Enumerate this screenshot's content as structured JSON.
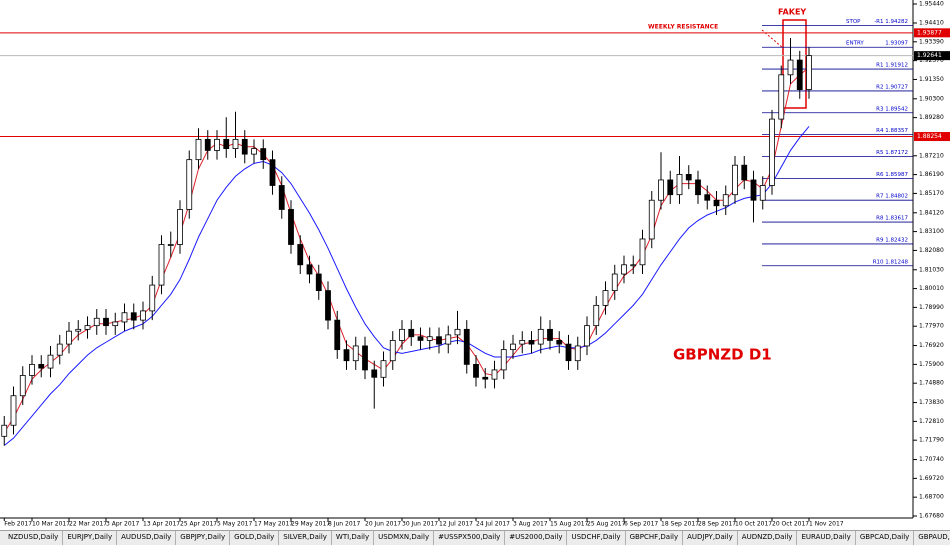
{
  "chart_data": {
    "type": "candlestick",
    "symbol_label": "GBPNZD D1",
    "annotations": {
      "resistance": "WEEKLY RESISTANCE",
      "pattern": "FAKEY"
    },
    "up_color": "#ffffff",
    "down_color": "#000000",
    "ylim": [
      1.67571,
      1.95657
    ],
    "yticks": [
      {
        "value": 1.9544,
        "label": "1.95440"
      },
      {
        "value": 1.9441,
        "label": "1.94410"
      },
      {
        "value": 1.9339,
        "label": "1.93390"
      },
      {
        "value": 1.9237,
        "label": "1.92370"
      },
      {
        "value": 1.9135,
        "label": "1.91350"
      },
      {
        "value": 1.903,
        "label": "1.90300"
      },
      {
        "value": 1.8928,
        "label": "1.89280"
      },
      {
        "value": 1.8721,
        "label": "1.87210"
      },
      {
        "value": 1.8619,
        "label": "1.86190"
      },
      {
        "value": 1.8517,
        "label": "1.85170"
      },
      {
        "value": 1.8412,
        "label": "1.84120"
      },
      {
        "value": 1.831,
        "label": "1.83100"
      },
      {
        "value": 1.8208,
        "label": "1.82080"
      },
      {
        "value": 1.8103,
        "label": "1.81030"
      },
      {
        "value": 1.8001,
        "label": "1.80010"
      },
      {
        "value": 1.7899,
        "label": "1.78990"
      },
      {
        "value": 1.7797,
        "label": "1.77970"
      },
      {
        "value": 1.7692,
        "label": "1.76920"
      },
      {
        "value": 1.759,
        "label": "1.75900"
      },
      {
        "value": 1.7488,
        "label": "1.74880"
      },
      {
        "value": 1.7383,
        "label": "1.73830"
      },
      {
        "value": 1.7281,
        "label": "1.72810"
      },
      {
        "value": 1.7179,
        "label": "1.71790"
      },
      {
        "value": 1.7074,
        "label": "1.70740"
      },
      {
        "value": 1.6972,
        "label": "1.69720"
      },
      {
        "value": 1.687,
        "label": "1.68700"
      },
      {
        "value": 1.6768,
        "label": "1.67680"
      }
    ],
    "categories": [
      "Feb 2017",
      null,
      null,
      "10 Mar 2017",
      null,
      null,
      null,
      "22 Mar 2017",
      null,
      null,
      null,
      "3 Apr 2017",
      null,
      null,
      null,
      "13 Apr 2017",
      null,
      null,
      null,
      "25 Apr 2017",
      null,
      null,
      null,
      "5 May 2017",
      null,
      null,
      null,
      "17 May 2017",
      null,
      null,
      null,
      "29 May 2017",
      null,
      null,
      null,
      "8 Jun 2017",
      null,
      null,
      null,
      "20 Jun 2017",
      null,
      null,
      null,
      "30 Jun 2017",
      null,
      null,
      null,
      "12 Jul 2017",
      null,
      null,
      null,
      "24 Jul 2017",
      null,
      null,
      null,
      "3 Aug 2017",
      null,
      null,
      null,
      "15 Aug 2017",
      null,
      null,
      null,
      "25 Aug 2017",
      null,
      null,
      null,
      "6 Sep 2017",
      null,
      null,
      null,
      "18 Sep 2017",
      null,
      null,
      null,
      "28 Sep 2017",
      null,
      null,
      null,
      "10 Oct 2017",
      null,
      null,
      null,
      "20 Oct 2017",
      null,
      null,
      null,
      "1 Nov 2017"
    ],
    "ohlc": [
      [
        1.72,
        1.731,
        1.715,
        1.726
      ],
      [
        1.726,
        1.747,
        1.721,
        1.742
      ],
      [
        1.742,
        1.758,
        1.737,
        1.753
      ],
      [
        1.753,
        1.764,
        1.748,
        1.759
      ],
      [
        1.759,
        1.764,
        1.752,
        1.757
      ],
      [
        1.757,
        1.769,
        1.752,
        1.764
      ],
      [
        1.764,
        1.775,
        1.759,
        1.77
      ],
      [
        1.77,
        1.782,
        1.765,
        1.777
      ],
      [
        1.777,
        1.783,
        1.772,
        1.778
      ],
      [
        1.778,
        1.785,
        1.773,
        1.78
      ],
      [
        1.78,
        1.789,
        1.775,
        1.784
      ],
      [
        1.784,
        1.789,
        1.775,
        1.78
      ],
      [
        1.78,
        1.787,
        1.775,
        1.782
      ],
      [
        1.782,
        1.792,
        1.777,
        1.787
      ],
      [
        1.787,
        1.792,
        1.778,
        1.783
      ],
      [
        1.783,
        1.793,
        1.778,
        1.788
      ],
      [
        1.788,
        1.807,
        1.783,
        1.802
      ],
      [
        1.802,
        1.829,
        1.797,
        1.824
      ],
      [
        1.824,
        1.831,
        1.817,
        1.824
      ],
      [
        1.824,
        1.848,
        1.819,
        1.843
      ],
      [
        1.843,
        1.875,
        1.838,
        1.87
      ],
      [
        1.87,
        1.887,
        1.865,
        1.881
      ],
      [
        1.881,
        1.886,
        1.87,
        1.875
      ],
      [
        1.875,
        1.886,
        1.87,
        1.881
      ],
      [
        1.881,
        1.893,
        1.871,
        1.876
      ],
      [
        1.876,
        1.896,
        1.871,
        1.881
      ],
      [
        1.881,
        1.886,
        1.868,
        1.873
      ],
      [
        1.873,
        1.881,
        1.868,
        1.876
      ],
      [
        1.876,
        1.881,
        1.865,
        1.87
      ],
      [
        1.87,
        1.875,
        1.851,
        1.856
      ],
      [
        1.856,
        1.861,
        1.838,
        1.843
      ],
      [
        1.843,
        1.848,
        1.819,
        1.824
      ],
      [
        1.824,
        1.829,
        1.808,
        1.813
      ],
      [
        1.813,
        1.818,
        1.803,
        1.808
      ],
      [
        1.808,
        1.813,
        1.794,
        1.799
      ],
      [
        1.799,
        1.804,
        1.778,
        1.783
      ],
      [
        1.783,
        1.788,
        1.762,
        1.767
      ],
      [
        1.767,
        1.772,
        1.756,
        1.761
      ],
      [
        1.761,
        1.774,
        1.756,
        1.769
      ],
      [
        1.769,
        1.774,
        1.751,
        1.756
      ],
      [
        1.756,
        1.761,
        1.735,
        1.752
      ],
      [
        1.752,
        1.766,
        1.747,
        1.761
      ],
      [
        1.761,
        1.777,
        1.756,
        1.772
      ],
      [
        1.772,
        1.783,
        1.767,
        1.778
      ],
      [
        1.778,
        1.783,
        1.769,
        1.774
      ],
      [
        1.774,
        1.779,
        1.767,
        1.772
      ],
      [
        1.772,
        1.779,
        1.767,
        1.774
      ],
      [
        1.774,
        1.779,
        1.765,
        1.77
      ],
      [
        1.77,
        1.78,
        1.765,
        1.775
      ],
      [
        1.775,
        1.788,
        1.77,
        1.778
      ],
      [
        1.778,
        1.783,
        1.754,
        1.759
      ],
      [
        1.759,
        1.764,
        1.747,
        1.752
      ],
      [
        1.752,
        1.757,
        1.746,
        1.751
      ],
      [
        1.751,
        1.761,
        1.746,
        1.756
      ],
      [
        1.756,
        1.772,
        1.751,
        1.767
      ],
      [
        1.767,
        1.775,
        1.762,
        1.77
      ],
      [
        1.77,
        1.777,
        1.765,
        1.772
      ],
      [
        1.772,
        1.777,
        1.765,
        1.77
      ],
      [
        1.77,
        1.785,
        1.765,
        1.778
      ],
      [
        1.778,
        1.783,
        1.767,
        1.772
      ],
      [
        1.772,
        1.777,
        1.765,
        1.77
      ],
      [
        1.77,
        1.775,
        1.756,
        1.761
      ],
      [
        1.761,
        1.774,
        1.756,
        1.769
      ],
      [
        1.769,
        1.785,
        1.764,
        1.78
      ],
      [
        1.78,
        1.796,
        1.775,
        1.791
      ],
      [
        1.791,
        1.804,
        1.786,
        1.799
      ],
      [
        1.799,
        1.813,
        1.794,
        1.808
      ],
      [
        1.808,
        1.818,
        1.803,
        1.813
      ],
      [
        1.813,
        1.818,
        1.808,
        1.813
      ],
      [
        1.813,
        1.832,
        1.808,
        1.827
      ],
      [
        1.827,
        1.853,
        1.822,
        1.848
      ],
      [
        1.848,
        1.874,
        1.843,
        1.859
      ],
      [
        1.859,
        1.864,
        1.846,
        1.851
      ],
      [
        1.851,
        1.872,
        1.846,
        1.862
      ],
      [
        1.862,
        1.867,
        1.854,
        1.859
      ],
      [
        1.859,
        1.864,
        1.846,
        1.851
      ],
      [
        1.851,
        1.856,
        1.843,
        1.848
      ],
      [
        1.848,
        1.853,
        1.84,
        1.845
      ],
      [
        1.845,
        1.856,
        1.84,
        1.851
      ],
      [
        1.851,
        1.872,
        1.846,
        1.867
      ],
      [
        1.867,
        1.872,
        1.854,
        1.859
      ],
      [
        1.859,
        1.864,
        1.836,
        1.848
      ],
      [
        1.848,
        1.861,
        1.843,
        1.856
      ],
      [
        1.856,
        1.897,
        1.851,
        1.892
      ],
      [
        1.892,
        1.921,
        1.887,
        1.916
      ],
      [
        1.916,
        1.936,
        1.911,
        1.924
      ],
      [
        1.924,
        1.929,
        1.903,
        1.908
      ],
      [
        1.908,
        1.931,
        1.903,
        1.9264
      ]
    ],
    "ma_lines": [
      {
        "color": "#e0202a",
        "values": [
          1.722,
          1.73,
          1.74,
          1.751,
          1.756,
          1.76,
          1.764,
          1.77,
          1.775,
          1.778,
          1.781,
          1.781,
          1.782,
          1.783,
          1.784,
          1.786,
          1.791,
          1.805,
          1.817,
          1.83,
          1.846,
          1.865,
          1.875,
          1.879,
          1.877,
          1.879,
          1.877,
          1.877,
          1.873,
          1.867,
          1.856,
          1.841,
          1.827,
          1.815,
          1.807,
          1.797,
          1.783,
          1.77,
          1.766,
          1.762,
          1.759,
          1.756,
          1.762,
          1.77,
          1.775,
          1.775,
          1.773,
          1.772,
          1.773,
          1.774,
          1.77,
          1.763,
          1.754,
          1.753,
          1.758,
          1.764,
          1.77,
          1.771,
          1.773,
          1.773,
          1.773,
          1.768,
          1.767,
          1.77,
          1.78,
          1.79,
          1.799,
          1.807,
          1.811,
          1.818,
          1.829,
          1.845,
          1.853,
          1.857,
          1.857,
          1.857,
          1.853,
          1.848,
          1.848,
          1.854,
          1.859,
          1.858,
          1.854,
          1.865,
          1.888,
          1.911,
          1.916,
          1.92
        ]
      },
      {
        "color": "#1a1aff",
        "values": [
          1.715,
          1.719,
          1.725,
          1.731,
          1.737,
          1.743,
          1.748,
          1.754,
          1.759,
          1.764,
          1.768,
          1.771,
          1.774,
          1.777,
          1.779,
          1.781,
          1.785,
          1.791,
          1.797,
          1.805,
          1.816,
          1.828,
          1.838,
          1.848,
          1.855,
          1.861,
          1.865,
          1.868,
          1.869,
          1.867,
          1.863,
          1.857,
          1.849,
          1.841,
          1.832,
          1.822,
          1.811,
          1.8,
          1.79,
          1.781,
          1.774,
          1.768,
          1.766,
          1.765,
          1.766,
          1.767,
          1.768,
          1.769,
          1.771,
          1.772,
          1.771,
          1.768,
          1.765,
          1.763,
          1.763,
          1.763,
          1.764,
          1.765,
          1.767,
          1.768,
          1.769,
          1.768,
          1.768,
          1.769,
          1.772,
          1.776,
          1.781,
          1.786,
          1.791,
          1.797,
          1.805,
          1.813,
          1.82,
          1.827,
          1.833,
          1.837,
          1.84,
          1.842,
          1.844,
          1.847,
          1.849,
          1.85,
          1.851,
          1.857,
          1.866,
          1.875,
          1.882,
          1.888
        ]
      }
    ],
    "hlines": [
      {
        "value": 1.93877,
        "color": "#e00000",
        "box": "#e00000"
      },
      {
        "value": 1.88254,
        "color": "#e00000",
        "box": "#e00000"
      },
      {
        "value": 1.92641,
        "color": "#b8b8b8",
        "box": "#000000"
      }
    ],
    "level_color": "#00008b",
    "levels": [
      {
        "name": "STOP",
        "label": "-R1 1.94282",
        "value": 1.94282
      },
      {
        "name": "ENTRY",
        "label": "1.93097",
        "value": 1.93097
      },
      {
        "label": "R1 1.91912",
        "value": 1.91912
      },
      {
        "label": "R2 1.90727",
        "value": 1.90727
      },
      {
        "label": "R3 1.89542",
        "value": 1.89542
      },
      {
        "label": "R4 1.88357",
        "value": 1.88357
      },
      {
        "label": "R5 1.87172",
        "value": 1.87172
      },
      {
        "label": "R6 1.85987",
        "value": 1.85987
      },
      {
        "label": "R7 1.84802",
        "value": 1.84802
      },
      {
        "label": "R8 1.83617",
        "value": 1.83617
      },
      {
        "label": "R9 1.82432",
        "value": 1.82432
      },
      {
        "label": "R10 1.81248",
        "value": 1.81248
      }
    ],
    "tabs": [
      "NZDUSD,Daily",
      "EURJPY,Daily",
      "AUDUSD,Daily",
      "GBPJPY,Daily",
      "GOLD,Daily",
      "SILVER,Daily",
      "WTI,Daily",
      "USDMXN,Daily",
      "#USSPX500,Daily",
      "#US2000,Daily",
      "USDCHF,Daily",
      "GBPCHF,Daily",
      "AUDJPY,Daily",
      "AUDNZD,Daily",
      "EURAUD,Daily",
      "GBPCAD,Daily",
      "GBPAUD,Daily"
    ]
  }
}
